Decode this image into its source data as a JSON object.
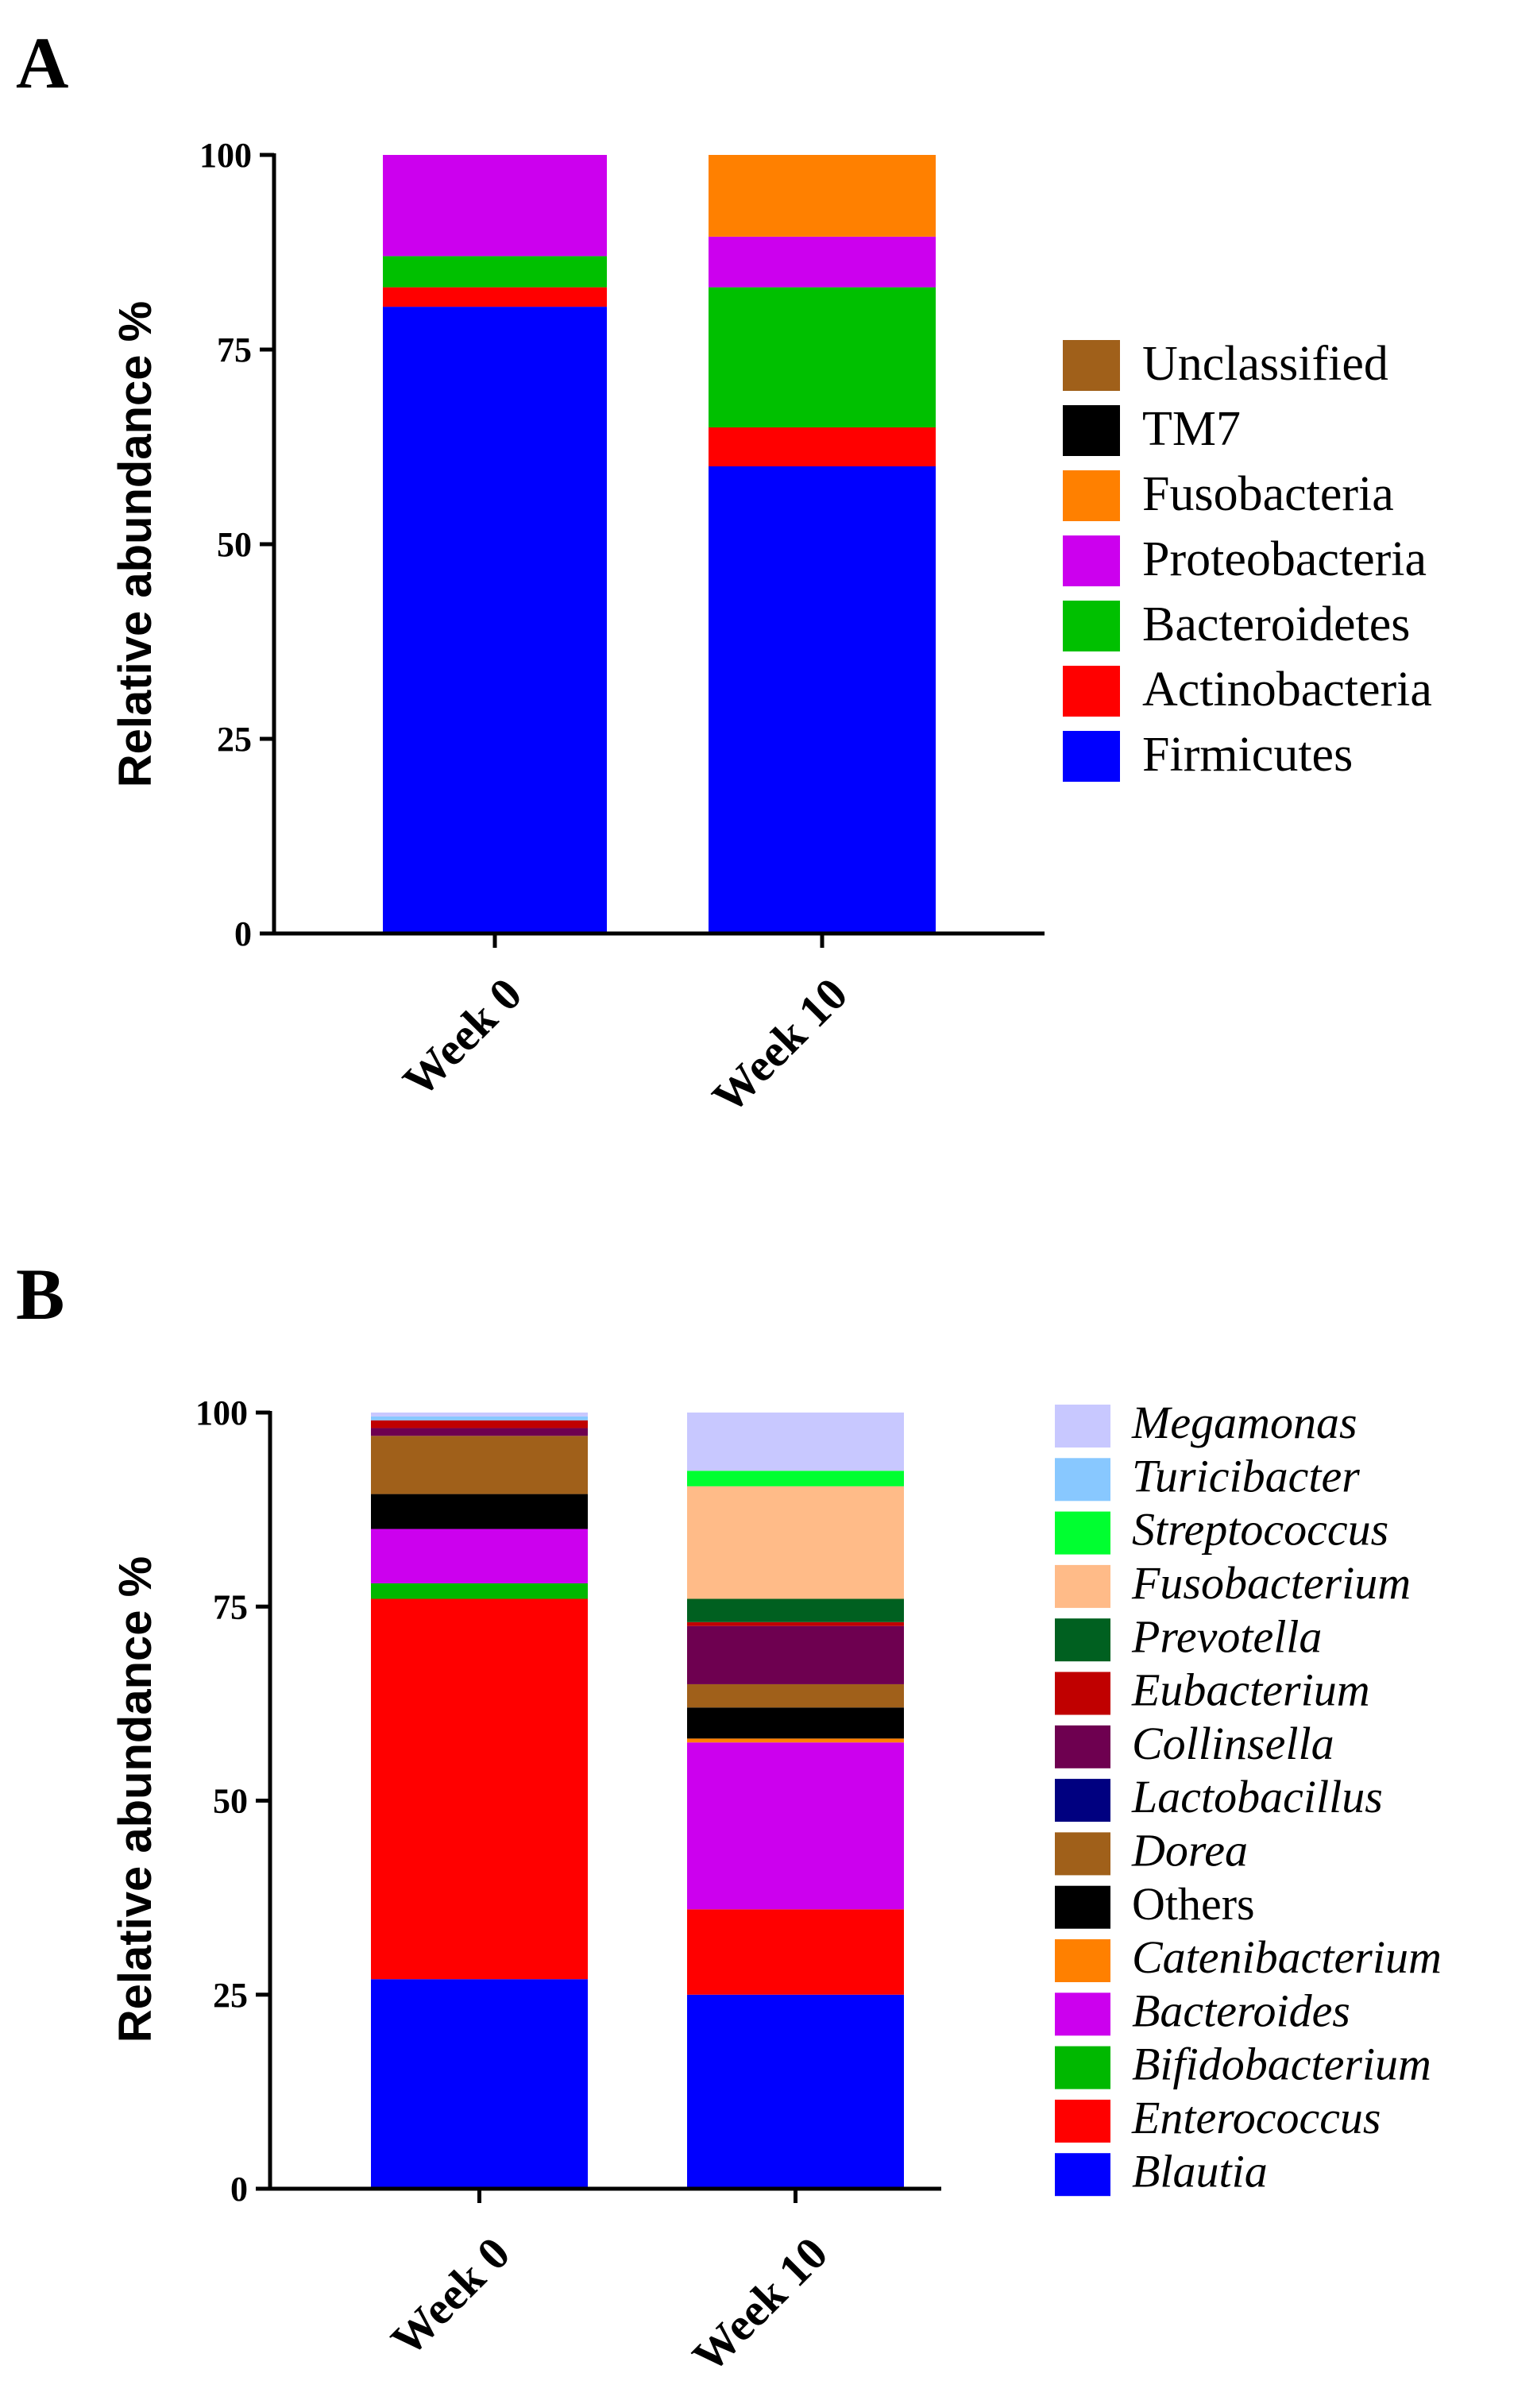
{
  "figure": {
    "panel_a_letter": "A",
    "panel_b_letter": "B"
  },
  "chart_data": [
    {
      "panel": "A",
      "type": "bar",
      "stacked": true,
      "title": "",
      "xlabel": "",
      "ylabel": "Relative abundance %",
      "ylim": [
        0,
        100
      ],
      "yticks": [
        0,
        25,
        50,
        75,
        100
      ],
      "categories": [
        "Week 0",
        "Week 10"
      ],
      "series": [
        {
          "name": "Firmicutes",
          "italic": false,
          "color": "#0000ff",
          "values": [
            80.5,
            60
          ]
        },
        {
          "name": "Actinobacteria",
          "italic": false,
          "color": "#ff0000",
          "values": [
            2.5,
            5
          ]
        },
        {
          "name": "Bacteroidetes",
          "italic": false,
          "color": "#00c000",
          "values": [
            4,
            18
          ]
        },
        {
          "name": "Proteobacteria",
          "italic": false,
          "color": "#cc00ee",
          "values": [
            13,
            6.5
          ]
        },
        {
          "name": "Fusobacteria",
          "italic": false,
          "color": "#ff8000",
          "values": [
            0,
            10.5
          ]
        },
        {
          "name": "TM7",
          "italic": false,
          "color": "#000000",
          "values": [
            0,
            0
          ]
        },
        {
          "name": "Unclassified",
          "italic": false,
          "color": "#a0601a",
          "values": [
            0,
            0
          ]
        }
      ],
      "legend_position": "right"
    },
    {
      "panel": "B",
      "type": "bar",
      "stacked": true,
      "title": "",
      "xlabel": "",
      "ylabel": "Relative abundance %",
      "ylim": [
        0,
        100
      ],
      "yticks": [
        0,
        25,
        50,
        75,
        100
      ],
      "categories": [
        "Week 0",
        "Week 10"
      ],
      "series": [
        {
          "name": "Blautia",
          "italic": true,
          "color": "#0000ff",
          "values": [
            27,
            25
          ]
        },
        {
          "name": "Enterococcus",
          "italic": true,
          "color": "#ff0000",
          "values": [
            49,
            11
          ]
        },
        {
          "name": "Bifidobacterium",
          "italic": true,
          "color": "#00b800",
          "values": [
            2,
            0
          ]
        },
        {
          "name": "Bacteroides",
          "italic": true,
          "color": "#cc00ee",
          "values": [
            7,
            21.5
          ]
        },
        {
          "name": "Catenibacterium",
          "italic": true,
          "color": "#ff8000",
          "values": [
            0,
            0.5
          ]
        },
        {
          "name": "Others",
          "italic": false,
          "color": "#000000",
          "values": [
            4.5,
            4
          ]
        },
        {
          "name": "Dorea",
          "italic": true,
          "color": "#a0601a",
          "values": [
            7.5,
            3
          ]
        },
        {
          "name": "Lactobacillus",
          "italic": true,
          "color": "#000080",
          "values": [
            0,
            0
          ]
        },
        {
          "name": "Collinsella",
          "italic": true,
          "color": "#6e0050",
          "values": [
            1,
            7.5
          ]
        },
        {
          "name": "Eubacterium",
          "italic": true,
          "color": "#c00000",
          "values": [
            1,
            0.5
          ]
        },
        {
          "name": "Prevotella",
          "italic": true,
          "color": "#006020",
          "values": [
            0,
            3
          ]
        },
        {
          "name": "Fusobacterium",
          "italic": true,
          "color": "#ffbb88",
          "values": [
            0,
            14.5
          ]
        },
        {
          "name": "Streptococcus",
          "italic": true,
          "color": "#00ff30",
          "values": [
            0,
            2
          ]
        },
        {
          "name": "Turicibacter",
          "italic": true,
          "color": "#88c8ff",
          "values": [
            0.5,
            0
          ]
        },
        {
          "name": "Megamonas",
          "italic": true,
          "color": "#c8c8ff",
          "values": [
            0.5,
            7.5
          ]
        }
      ],
      "legend_position": "right"
    }
  ]
}
